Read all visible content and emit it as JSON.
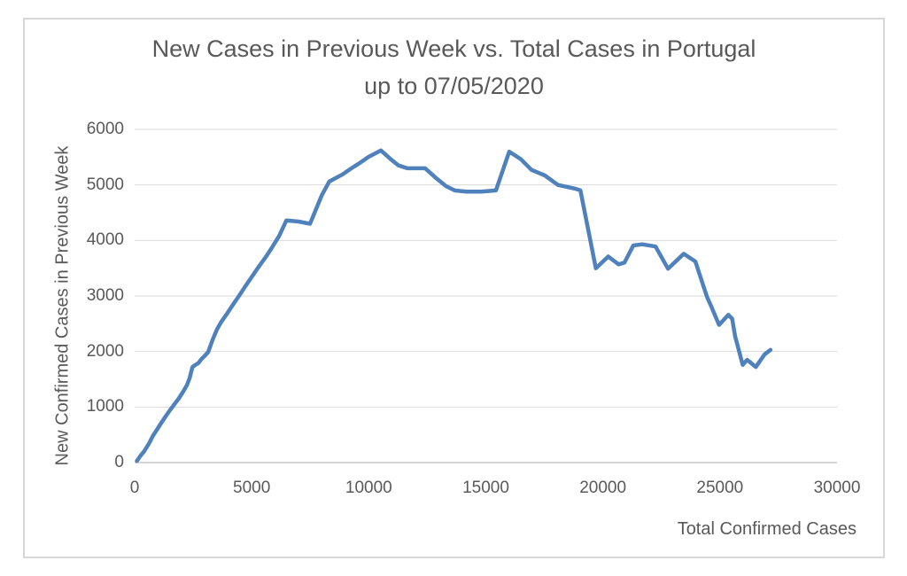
{
  "chart_data": {
    "type": "line",
    "title_line1": "New Cases in Previous Week vs. Total Cases in Portugal",
    "title_line2": "up to 07/05/2020",
    "xlabel": "Total Confirmed Cases",
    "ylabel": "New Confirmed Cases in Previous Week",
    "xlim": [
      0,
      30000
    ],
    "ylim": [
      0,
      6000
    ],
    "x_ticks": [
      0,
      5000,
      10000,
      15000,
      20000,
      25000,
      30000
    ],
    "y_ticks": [
      0,
      1000,
      2000,
      3000,
      4000,
      5000,
      6000
    ],
    "grid": "horizontal-only",
    "legend": "none",
    "line_color": "#4F81BD",
    "gridline_color": "#d9d9d9",
    "axis_line_color": "#c8c8c8",
    "text_color": "#595959",
    "series": [
      {
        "name": "New confirmed cases in previous week vs total confirmed cases",
        "points": [
          [
            100,
            30
          ],
          [
            180,
            80
          ],
          [
            260,
            130
          ],
          [
            400,
            200
          ],
          [
            550,
            300
          ],
          [
            660,
            380
          ],
          [
            780,
            480
          ],
          [
            950,
            590
          ],
          [
            1130,
            710
          ],
          [
            1320,
            830
          ],
          [
            1500,
            940
          ],
          [
            1700,
            1050
          ],
          [
            1880,
            1150
          ],
          [
            2060,
            1270
          ],
          [
            2230,
            1390
          ],
          [
            2350,
            1520
          ],
          [
            2420,
            1640
          ],
          [
            2470,
            1720
          ],
          [
            2600,
            1760
          ],
          [
            2720,
            1790
          ],
          [
            2850,
            1860
          ],
          [
            2990,
            1920
          ],
          [
            3140,
            1990
          ],
          [
            3330,
            2210
          ],
          [
            3520,
            2400
          ],
          [
            3710,
            2540
          ],
          [
            3960,
            2690
          ],
          [
            4210,
            2850
          ],
          [
            4470,
            3010
          ],
          [
            4720,
            3170
          ],
          [
            5030,
            3360
          ],
          [
            5290,
            3520
          ],
          [
            5600,
            3700
          ],
          [
            5850,
            3860
          ],
          [
            6170,
            4080
          ],
          [
            6480,
            4360
          ],
          [
            7000,
            4340
          ],
          [
            7490,
            4300
          ],
          [
            8000,
            4820
          ],
          [
            8310,
            5060
          ],
          [
            8880,
            5190
          ],
          [
            9260,
            5300
          ],
          [
            9630,
            5400
          ],
          [
            10010,
            5510
          ],
          [
            10520,
            5620
          ],
          [
            10890,
            5480
          ],
          [
            11270,
            5350
          ],
          [
            11650,
            5300
          ],
          [
            12410,
            5300
          ],
          [
            12910,
            5110
          ],
          [
            13290,
            4980
          ],
          [
            13670,
            4900
          ],
          [
            14170,
            4880
          ],
          [
            14800,
            4880
          ],
          [
            15430,
            4900
          ],
          [
            16000,
            5600
          ],
          [
            16500,
            5460
          ],
          [
            16950,
            5270
          ],
          [
            17520,
            5170
          ],
          [
            18080,
            5000
          ],
          [
            18840,
            4930
          ],
          [
            19040,
            4900
          ],
          [
            19700,
            3500
          ],
          [
            20230,
            3710
          ],
          [
            20670,
            3570
          ],
          [
            20920,
            3600
          ],
          [
            21300,
            3910
          ],
          [
            21680,
            3930
          ],
          [
            22250,
            3890
          ],
          [
            22780,
            3490
          ],
          [
            23450,
            3760
          ],
          [
            23950,
            3620
          ],
          [
            24260,
            3220
          ],
          [
            24450,
            2980
          ],
          [
            24640,
            2800
          ],
          [
            24960,
            2480
          ],
          [
            25360,
            2660
          ],
          [
            25520,
            2590
          ],
          [
            25650,
            2270
          ],
          [
            25970,
            1760
          ],
          [
            26160,
            1850
          ],
          [
            26280,
            1810
          ],
          [
            26530,
            1720
          ],
          [
            26910,
            1950
          ],
          [
            27160,
            2030
          ]
        ]
      }
    ]
  }
}
